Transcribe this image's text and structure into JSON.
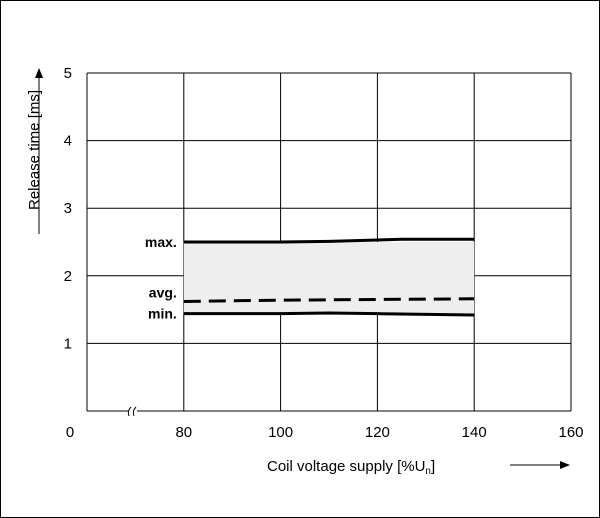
{
  "chart_data": {
    "type": "line",
    "xlabel": "Coil voltage supply [%U",
    "xlabel_sub": "n",
    "xlabel_end": "]",
    "ylabel": "Release time [ms]",
    "xlim": [
      60,
      160
    ],
    "ylim": [
      0,
      5
    ],
    "x_ticks": [
      "80",
      "100",
      "120",
      "140",
      "160"
    ],
    "x_origin_tick": "0",
    "y_ticks": [
      "1",
      "2",
      "3",
      "4",
      "5"
    ],
    "axis_break": true,
    "grid": true,
    "band_between": [
      "max.",
      "min."
    ],
    "band_color": "#eeeeee",
    "series": [
      {
        "name": "max.",
        "style": "solid",
        "x": [
          80,
          100,
          110,
          120,
          125,
          140
        ],
        "y": [
          2.5,
          2.5,
          2.51,
          2.53,
          2.54,
          2.54
        ]
      },
      {
        "name": "avg.",
        "style": "dashed",
        "x": [
          80,
          100,
          120,
          140
        ],
        "y": [
          1.62,
          1.64,
          1.65,
          1.66
        ]
      },
      {
        "name": "min.",
        "style": "solid",
        "x": [
          80,
          100,
          110,
          120,
          140
        ],
        "y": [
          1.44,
          1.44,
          1.45,
          1.44,
          1.42
        ]
      }
    ]
  }
}
